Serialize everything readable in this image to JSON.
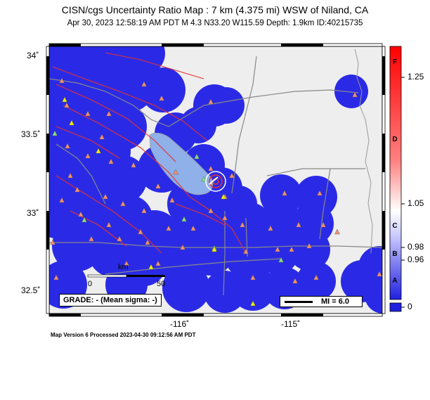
{
  "title": "CISN/cgs Uncertainty Ratio Map : 7 km (4.375 mi) WSW of Niland, CA",
  "subtitle": "Apr 30, 2023 12:58:19 AM PDT   M 4.3   N33.20 W115.59   Depth: 1.9km   ID:40215735",
  "axes": {
    "lat_labels": [
      "34˚",
      "33.5˚",
      "33˚",
      "32.5˚"
    ],
    "lon_labels": [
      "-116˚",
      "-115˚"
    ],
    "lat_range": [
      32.4,
      34.05
    ],
    "lon_range": [
      -116.6,
      -114.45
    ]
  },
  "grade_text": "GRADE: - (Mean sigma: -)",
  "scale_bar": {
    "unit": "km",
    "zero": "0",
    "max": "50"
  },
  "mi_legend": "MI = 6.0",
  "colorbar": {
    "letters": [
      "F",
      "D",
      "C",
      "B",
      "A"
    ],
    "ticks": [
      "1.25",
      "1.05",
      "0.98",
      "0.96",
      "0"
    ]
  },
  "footer": "Map Version 6 Processed 2023-04-30 09:12:56 AM PDT",
  "colors": {
    "uncertainty_blue": "#2a2ae6",
    "background": "#eeeeee",
    "lake": "#8fb0e8",
    "fault": "#e63030",
    "road": "#888888",
    "station_triangle": "#f09070",
    "station_green": "#80e080",
    "station_yellow": "#f0f000"
  },
  "epicenter": {
    "lat": 33.2,
    "lon": -115.59
  }
}
